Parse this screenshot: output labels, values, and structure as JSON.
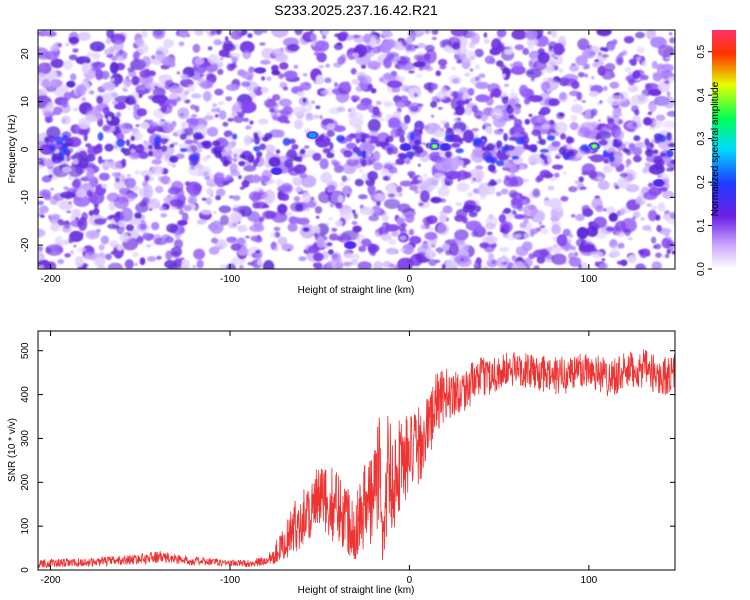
{
  "title": "S233.2025.237.16.42.R21",
  "chart_data": [
    {
      "type": "heatmap",
      "xlabel": "Height of straight line (km)",
      "ylabel": "Frequency (Hz)",
      "xlim": [
        -207,
        148
      ],
      "ylim": [
        -25,
        25
      ],
      "xticks": [
        -200,
        -100,
        0,
        100
      ],
      "yticks": [
        -20,
        -10,
        0,
        10,
        20
      ],
      "colorbar": {
        "label": "Normalized spectral amplitude",
        "range": [
          0,
          0.55
        ],
        "ticks": [
          0.0,
          0.1,
          0.2,
          0.3,
          0.4,
          0.5
        ],
        "tick_labels": [
          "0.0",
          "0.1",
          "0.2",
          "0.3",
          "0.4",
          "0.5"
        ],
        "colormap": "rainbow (white-purple-blue-cyan-green-yellow-red-pink)"
      },
      "features": [
        {
          "x": 14,
          "y": 0.7,
          "amplitude": 0.48
        },
        {
          "x": 103,
          "y": 0.7,
          "amplitude": 0.52
        },
        {
          "x": 20,
          "y": 0.5,
          "amplitude": 0.22
        },
        {
          "x": -54,
          "y": 3,
          "amplitude": 0.25
        },
        {
          "x": -74,
          "y": -4.5,
          "amplitude": 0.2
        },
        {
          "x": -2,
          "y": 0.5,
          "amplitude": 0.18
        },
        {
          "x": 139,
          "y": -7,
          "amplitude": 0.15
        },
        {
          "x": -33,
          "y": -20,
          "amplitude": 0.15
        }
      ]
    },
    {
      "type": "line",
      "xlabel": "Height of straight line (km)",
      "ylabel": "SNR (10 * v/v)",
      "xlim": [
        -207,
        148
      ],
      "ylim": [
        0,
        545
      ],
      "xticks": [
        -200,
        -100,
        0,
        100
      ],
      "yticks": [
        0,
        100,
        200,
        300,
        400,
        500
      ],
      "color": "#ee3333",
      "series": [
        {
          "x": [
            -207,
            -180,
            -150,
            -140,
            -120,
            -100,
            -90,
            -80,
            -75,
            -70,
            -65,
            -60,
            -55,
            -50,
            -45,
            -40,
            -35,
            -30,
            -25,
            -20,
            -16,
            -15,
            -12,
            -8,
            -5,
            0,
            5,
            10,
            15,
            20,
            30,
            40,
            50,
            60,
            70,
            80,
            90,
            100,
            110,
            120,
            130,
            140,
            148
          ],
          "y": [
            15,
            17,
            25,
            30,
            20,
            16,
            15,
            20,
            40,
            60,
            90,
            120,
            140,
            160,
            150,
            150,
            120,
            100,
            150,
            170,
            250,
            40,
            230,
            210,
            250,
            260,
            280,
            320,
            380,
            400,
            410,
            440,
            450,
            460,
            450,
            440,
            450,
            460,
            440,
            450,
            460,
            440,
            450
          ],
          "noise": [
            10,
            10,
            12,
            14,
            10,
            8,
            8,
            12,
            25,
            35,
            60,
            65,
            75,
            80,
            85,
            85,
            85,
            80,
            100,
            120,
            130,
            40,
            140,
            120,
            110,
            100,
            90,
            80,
            70,
            60,
            50,
            45,
            45,
            40,
            40,
            45,
            45,
            45,
            45,
            45,
            45,
            45,
            45
          ]
        }
      ]
    }
  ]
}
